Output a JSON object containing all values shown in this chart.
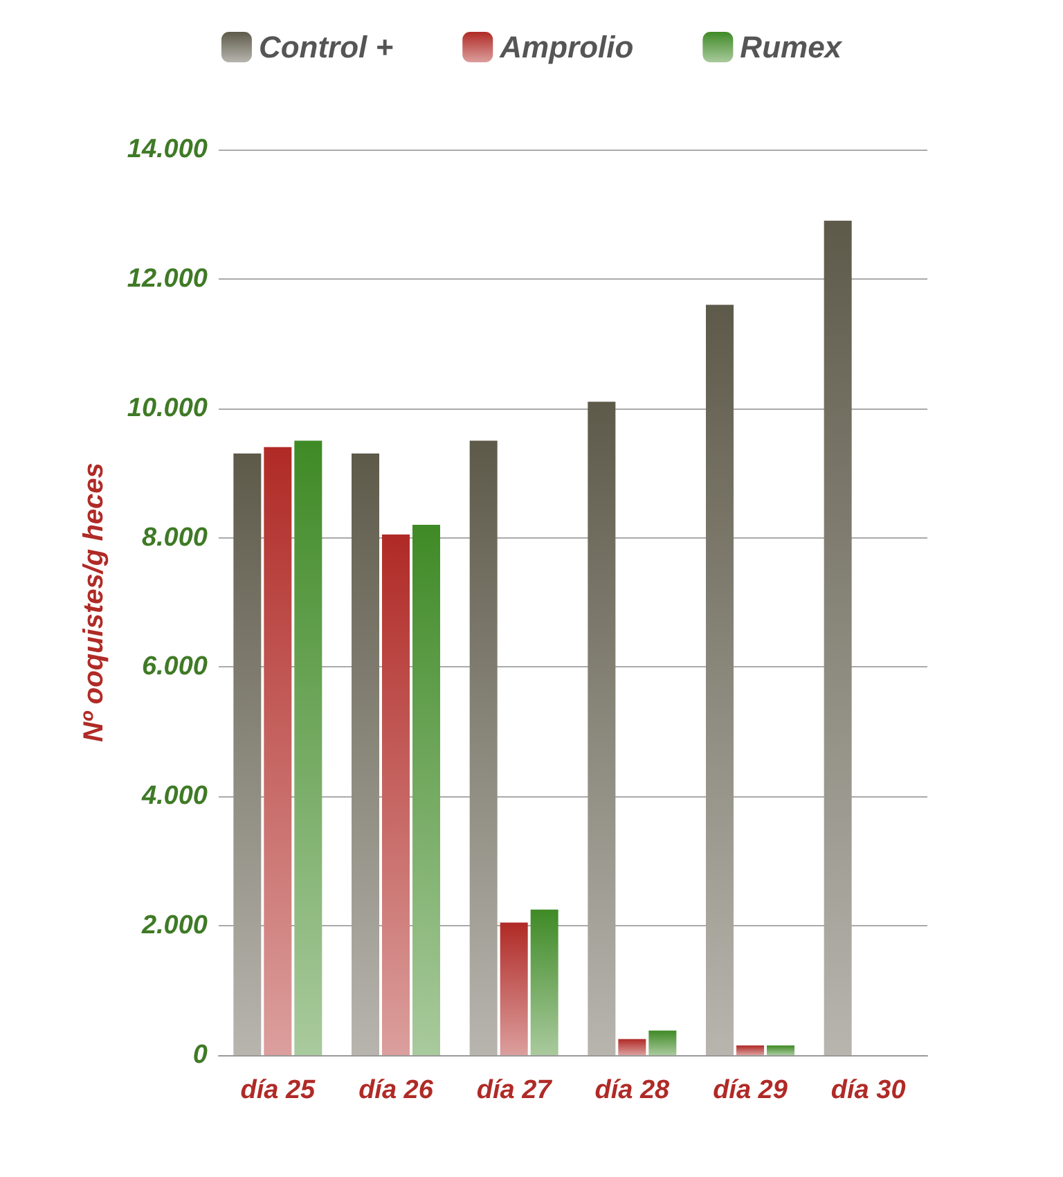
{
  "chart_data": {
    "type": "bar",
    "ylabel": "Nº ooquistes/g heces",
    "categories": [
      "día 25",
      "día 26",
      "día 27",
      "día 28",
      "día 29",
      "día 30"
    ],
    "series": [
      {
        "name": "Control +",
        "color": "#5e5a4a",
        "values": [
          9300,
          9300,
          9500,
          10100,
          11600,
          12900
        ]
      },
      {
        "name": "Amprolio",
        "color": "#b02a26",
        "values": [
          9400,
          8050,
          2050,
          250,
          150,
          null
        ]
      },
      {
        "name": "Rumex",
        "color": "#3f8a26",
        "values": [
          9500,
          8200,
          2250,
          380,
          150,
          null
        ]
      }
    ],
    "ylim": [
      0,
      14000
    ],
    "yticks": [
      0,
      {
        "value": 2000,
        "label": "2.000"
      },
      {
        "value": 4000,
        "label": "4.000"
      },
      {
        "value": 6000,
        "label": "6.000"
      },
      {
        "value": 8000,
        "label": "8.000"
      },
      {
        "value": 10000,
        "label": "10.000"
      },
      {
        "value": 12000,
        "label": "12.000"
      },
      {
        "value": 14000,
        "label": "14.000"
      }
    ],
    "grid": "y",
    "legend": "top"
  }
}
